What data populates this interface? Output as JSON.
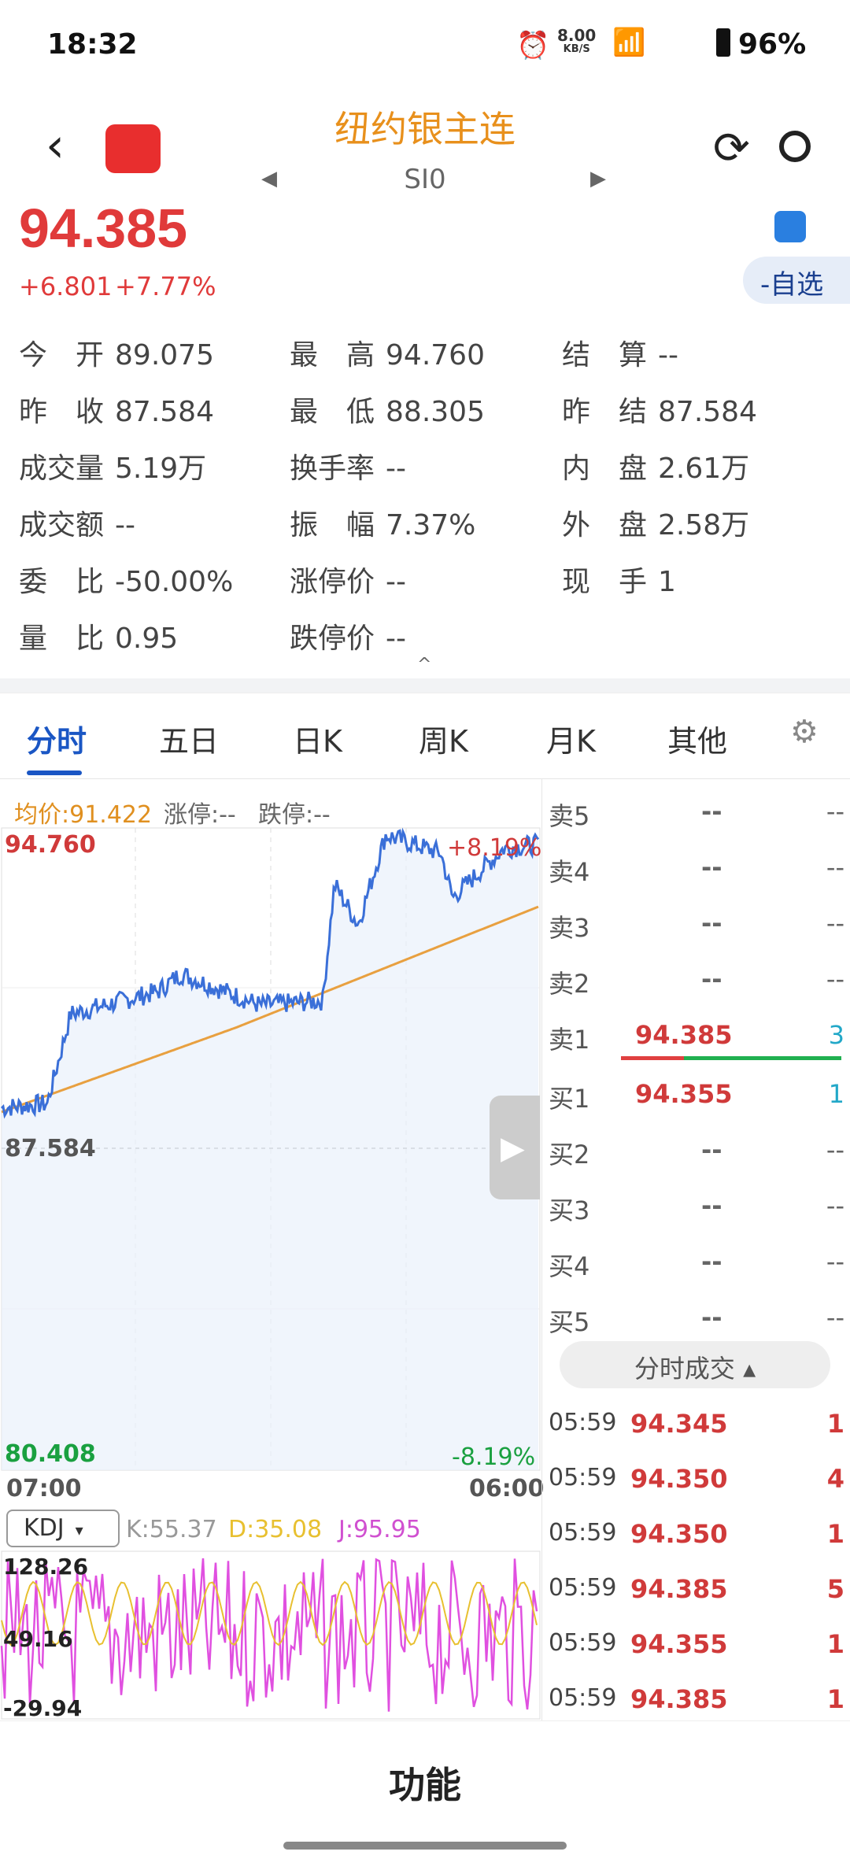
{
  "status": {
    "time": "18:32",
    "speed": "8.00",
    "speed_unit": "KB/S",
    "battery": "96%"
  },
  "header": {
    "title": "纽约银主连",
    "code": "SI0",
    "watch_label": "-自选"
  },
  "quote": {
    "price": "94.385",
    "change": "+6.801",
    "change_pct": "+7.77%"
  },
  "stats": [
    [
      {
        "k": "今　开",
        "v": "89.075"
      },
      {
        "k": "最　高",
        "v": "94.760"
      },
      {
        "k": "结　算",
        "v": "--"
      }
    ],
    [
      {
        "k": "昨　收",
        "v": "87.584"
      },
      {
        "k": "最　低",
        "v": "88.305"
      },
      {
        "k": "昨　结",
        "v": "87.584"
      }
    ],
    [
      {
        "k": "成交量",
        "v": "5.19万"
      },
      {
        "k": "换手率",
        "v": "--"
      },
      {
        "k": "内　盘",
        "v": "2.61万"
      }
    ],
    [
      {
        "k": "成交额",
        "v": "--"
      },
      {
        "k": "振　幅",
        "v": "7.37%"
      },
      {
        "k": "外　盘",
        "v": "2.58万"
      }
    ],
    [
      {
        "k": "委　比",
        "v": "-50.00%"
      },
      {
        "k": "涨停价",
        "v": "--"
      },
      {
        "k": "现　手",
        "v": "1"
      }
    ],
    [
      {
        "k": "量　比",
        "v": "0.95"
      },
      {
        "k": "跌停价",
        "v": "--"
      }
    ]
  ],
  "tabs": [
    "分时",
    "五日",
    "日K",
    "周K",
    "月K",
    "其他"
  ],
  "chart": {
    "avg_label": "均价:91.422",
    "limit_up": "涨停:--",
    "limit_down": "跌停:--",
    "high": "94.760",
    "high_pct": "+8.19%",
    "base": "87.584",
    "low": "80.408",
    "low_pct": "-8.19%",
    "time_start": "07:00",
    "time_end": "06:00",
    "line_color": "#3a6fd8",
    "avg_color": "#e8a040"
  },
  "kdj": {
    "select": "KDJ",
    "k": "K:55.37",
    "d": "D:35.08",
    "j": "J:95.95",
    "max": "128.26",
    "mid": "49.16",
    "min": "-29.94"
  },
  "orderbook": {
    "asks": [
      {
        "l": "卖5",
        "p": "--",
        "v": "--"
      },
      {
        "l": "卖4",
        "p": "--",
        "v": "--"
      },
      {
        "l": "卖3",
        "p": "--",
        "v": "--"
      },
      {
        "l": "卖2",
        "p": "--",
        "v": "--"
      },
      {
        "l": "卖1",
        "p": "94.385",
        "v": "3"
      }
    ],
    "bids": [
      {
        "l": "买1",
        "p": "94.355",
        "v": "1"
      },
      {
        "l": "买2",
        "p": "--",
        "v": "--"
      },
      {
        "l": "买3",
        "p": "--",
        "v": "--"
      },
      {
        "l": "买4",
        "p": "--",
        "v": "--"
      },
      {
        "l": "买5",
        "p": "--",
        "v": "--"
      }
    ],
    "trades_label": "分时成交",
    "trades": [
      {
        "t": "05:59",
        "p": "94.345",
        "v": "1"
      },
      {
        "t": "05:59",
        "p": "94.350",
        "v": "4"
      },
      {
        "t": "05:59",
        "p": "94.350",
        "v": "1"
      },
      {
        "t": "05:59",
        "p": "94.385",
        "v": "5"
      },
      {
        "t": "05:59",
        "p": "94.355",
        "v": "1"
      },
      {
        "t": "05:59",
        "p": "94.385",
        "v": "1"
      }
    ]
  },
  "bottom": {
    "func_label": "功能"
  }
}
